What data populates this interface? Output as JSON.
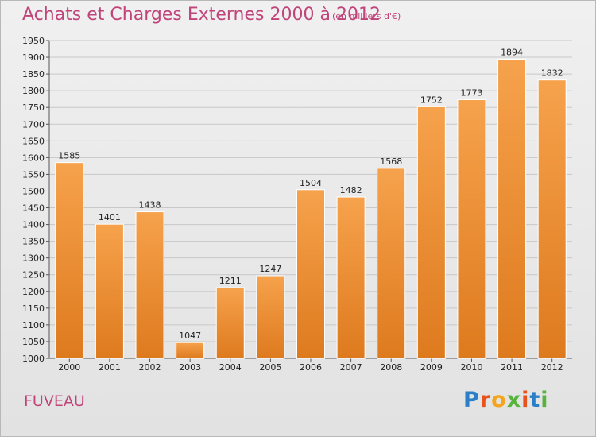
{
  "header": {
    "title": "Achats et Charges Externes 2000 à 2012",
    "unit": "(en milliers d'€)"
  },
  "footer": {
    "town": "FUVEAU",
    "logo_text": "Proxiti",
    "logo_colors": [
      "#2a7fc8",
      "#e8531c",
      "#f4a51c",
      "#57b33e",
      "#e8531c",
      "#2a7fc8",
      "#57b33e"
    ]
  },
  "colors": {
    "title": "#c0447a",
    "bar_top": "#f6a24c",
    "bar_bottom": "#de7a1e",
    "grid": "#c8c8c8"
  },
  "chart_data": {
    "type": "bar",
    "categories": [
      "2000",
      "2001",
      "2002",
      "2003",
      "2004",
      "2005",
      "2006",
      "2007",
      "2008",
      "2009",
      "2010",
      "2011",
      "2012"
    ],
    "values": [
      1585,
      1401,
      1438,
      1047,
      1211,
      1247,
      1504,
      1482,
      1568,
      1752,
      1773,
      1894,
      1832
    ],
    "title": "Achats et Charges Externes 2000 à 2012",
    "ylim": [
      1000,
      1950
    ],
    "yticks": [
      1000,
      1050,
      1100,
      1150,
      1200,
      1250,
      1300,
      1350,
      1400,
      1450,
      1500,
      1550,
      1600,
      1650,
      1700,
      1750,
      1800,
      1850,
      1900,
      1950
    ],
    "grid": true
  }
}
